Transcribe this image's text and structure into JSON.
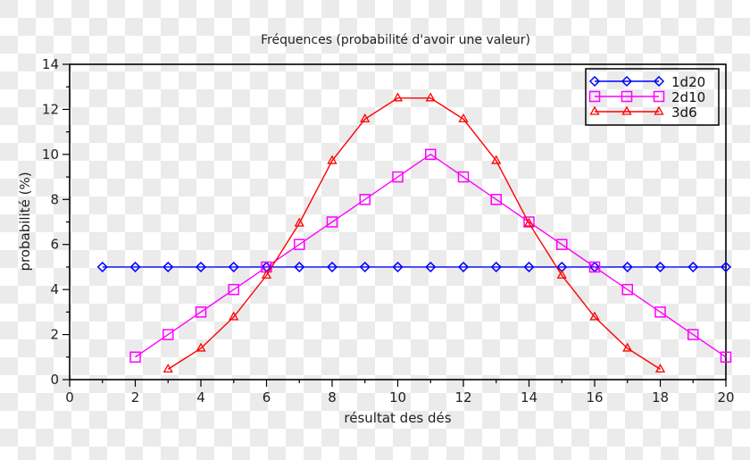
{
  "chart_data": {
    "type": "line",
    "title": "Fréquences (probabilité d'avoir une valeur)",
    "xlabel": "résultat des dés",
    "ylabel": "probabilité (%)",
    "xlim": [
      0,
      20
    ],
    "ylim": [
      0,
      14
    ],
    "x_ticks": [
      0,
      2,
      4,
      6,
      8,
      10,
      12,
      14,
      16,
      18,
      20
    ],
    "y_ticks": [
      0,
      2,
      4,
      6,
      8,
      10,
      12,
      14
    ],
    "grid": false,
    "legend_position": "upper right",
    "series": [
      {
        "name": "1d20",
        "color": "#0000ff",
        "marker": "diamond",
        "x": [
          1,
          2,
          3,
          4,
          5,
          6,
          7,
          8,
          9,
          10,
          11,
          12,
          13,
          14,
          15,
          16,
          17,
          18,
          19,
          20
        ],
        "values": [
          5,
          5,
          5,
          5,
          5,
          5,
          5,
          5,
          5,
          5,
          5,
          5,
          5,
          5,
          5,
          5,
          5,
          5,
          5,
          5
        ]
      },
      {
        "name": "2d10",
        "color": "#ff00ff",
        "marker": "square",
        "x": [
          2,
          3,
          4,
          5,
          6,
          7,
          8,
          9,
          10,
          11,
          12,
          13,
          14,
          15,
          16,
          17,
          18,
          19,
          20
        ],
        "values": [
          1,
          2,
          3,
          4,
          5,
          6,
          7,
          8,
          9,
          10,
          9,
          8,
          7,
          6,
          5,
          4,
          3,
          2,
          1
        ]
      },
      {
        "name": "3d6",
        "color": "#ff0000",
        "marker": "triangle",
        "x": [
          3,
          4,
          5,
          6,
          7,
          8,
          9,
          10,
          11,
          12,
          13,
          14,
          15,
          16,
          17,
          18
        ],
        "values": [
          0.46,
          1.39,
          2.78,
          4.63,
          6.94,
          9.72,
          11.57,
          12.5,
          12.5,
          11.57,
          9.72,
          6.94,
          4.63,
          2.78,
          1.39,
          0.46
        ]
      }
    ]
  }
}
